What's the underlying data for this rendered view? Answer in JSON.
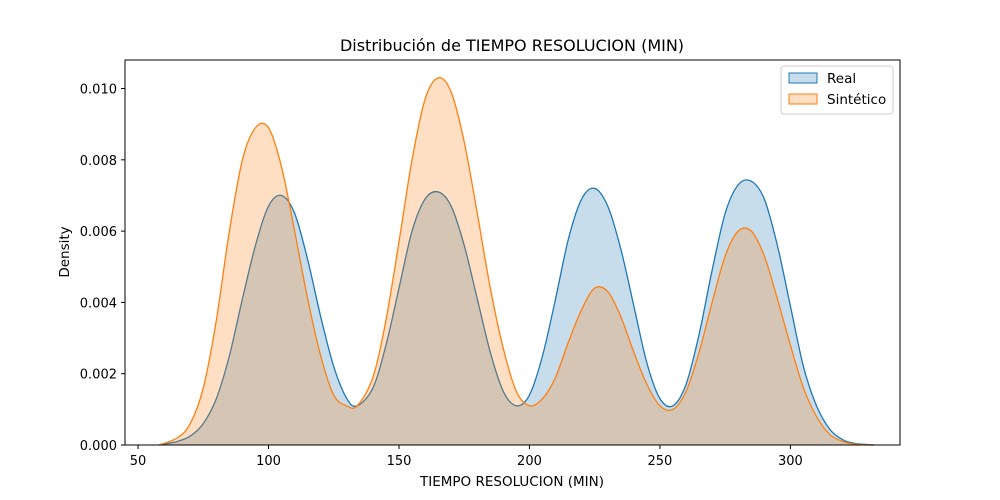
{
  "chart_data": {
    "type": "area",
    "title": "Distribución de TIEMPO RESOLUCION (MIN)",
    "xlabel": "TIEMPO RESOLUCION (MIN)",
    "ylabel": "Density",
    "xlim": [
      45,
      342
    ],
    "ylim": [
      0,
      0.0108
    ],
    "xticks": [
      50,
      100,
      150,
      200,
      250,
      300
    ],
    "xtick_labels": [
      "50",
      "100",
      "150",
      "200",
      "250",
      "300"
    ],
    "yticks": [
      0,
      0.002,
      0.004,
      0.006,
      0.008,
      0.01
    ],
    "ytick_labels": [
      "0.000",
      "0.002",
      "0.004",
      "0.006",
      "0.008",
      "0.010"
    ],
    "grid": false,
    "legend_position": "top-right",
    "series": [
      {
        "name": "Real",
        "color": "#1f77b4",
        "fill_color": "#1f77b4",
        "x": [
          58,
          65,
          70,
          75,
          80,
          85,
          90,
          95,
          100,
          105,
          110,
          115,
          120,
          125,
          130,
          134,
          140,
          145,
          150,
          155,
          160,
          165,
          170,
          175,
          180,
          185,
          190,
          195,
          200,
          205,
          210,
          215,
          220,
          225,
          230,
          235,
          240,
          245,
          250,
          255,
          260,
          265,
          270,
          275,
          280,
          285,
          290,
          295,
          300,
          305,
          310,
          315,
          320,
          325,
          332
        ],
        "y": [
          0.0,
          0.0001,
          0.00025,
          0.0006,
          0.0013,
          0.0025,
          0.0041,
          0.0056,
          0.0067,
          0.007,
          0.0065,
          0.0052,
          0.0036,
          0.0022,
          0.0013,
          0.0011,
          0.0016,
          0.0028,
          0.0044,
          0.006,
          0.0069,
          0.0071,
          0.0067,
          0.0056,
          0.0041,
          0.0026,
          0.0015,
          0.0011,
          0.0014,
          0.0025,
          0.0041,
          0.0058,
          0.0069,
          0.0072,
          0.0067,
          0.0055,
          0.0039,
          0.0023,
          0.0013,
          0.0011,
          0.0017,
          0.0031,
          0.0049,
          0.0065,
          0.0073,
          0.0074,
          0.0069,
          0.0056,
          0.0039,
          0.0022,
          0.0011,
          0.00045,
          0.00015,
          4e-05,
          0.0
        ]
      },
      {
        "name": "Sintético",
        "color": "#ff7f0e",
        "fill_color": "#ff7f0e",
        "x": [
          58,
          65,
          70,
          75,
          80,
          85,
          90,
          95,
          100,
          105,
          110,
          115,
          120,
          125,
          130,
          134,
          140,
          145,
          150,
          155,
          160,
          165,
          170,
          175,
          180,
          185,
          190,
          195,
          200,
          205,
          210,
          215,
          220,
          225,
          230,
          235,
          240,
          245,
          250,
          255,
          260,
          265,
          270,
          275,
          280,
          285,
          290,
          295,
          300,
          305,
          310,
          315,
          320,
          325,
          332
        ],
        "y": [
          0.0,
          0.0002,
          0.0006,
          0.0016,
          0.0035,
          0.006,
          0.008,
          0.0089,
          0.0089,
          0.0078,
          0.006,
          0.0041,
          0.0025,
          0.0014,
          0.0011,
          0.0011,
          0.0019,
          0.0035,
          0.0057,
          0.008,
          0.0097,
          0.0103,
          0.0099,
          0.0085,
          0.0065,
          0.0044,
          0.0027,
          0.0015,
          0.0011,
          0.0013,
          0.0019,
          0.0029,
          0.0038,
          0.0044,
          0.0043,
          0.0036,
          0.0026,
          0.0017,
          0.0011,
          0.001,
          0.0015,
          0.0026,
          0.004,
          0.0053,
          0.006,
          0.006,
          0.0053,
          0.0041,
          0.0028,
          0.0016,
          0.0008,
          0.0003,
          0.0001,
          2e-05,
          0.0
        ]
      }
    ]
  }
}
